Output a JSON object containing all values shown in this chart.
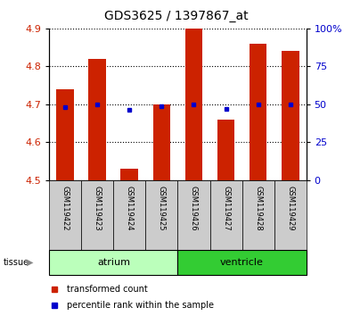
{
  "title": "GDS3625 / 1397867_at",
  "samples": [
    "GSM119422",
    "GSM119423",
    "GSM119424",
    "GSM119425",
    "GSM119426",
    "GSM119427",
    "GSM119428",
    "GSM119429"
  ],
  "transformed_count": [
    4.74,
    4.82,
    4.53,
    4.7,
    4.9,
    4.66,
    4.86,
    4.84
  ],
  "percentile_rank": [
    4.692,
    4.7,
    4.685,
    4.695,
    4.7,
    4.687,
    4.7,
    4.7
  ],
  "bar_bottom": 4.5,
  "ylim": [
    4.5,
    4.9
  ],
  "yticks_left": [
    4.5,
    4.6,
    4.7,
    4.8,
    4.9
  ],
  "yticks_right": [
    0,
    25,
    50,
    75,
    100
  ],
  "yticks_right_pos": [
    4.5,
    4.6,
    4.7,
    4.8,
    4.9
  ],
  "bar_color": "#cc2200",
  "dot_color": "#0000cc",
  "grid_color": "#000000",
  "tissue_groups": [
    {
      "label": "atrium",
      "indices": [
        0,
        1,
        2,
        3
      ],
      "color": "#bbffbb"
    },
    {
      "label": "ventricle",
      "indices": [
        4,
        5,
        6,
        7
      ],
      "color": "#33cc33"
    }
  ],
  "legend_bar_label": "transformed count",
  "legend_dot_label": "percentile rank within the sample",
  "bar_width": 0.55,
  "title_fontsize": 10,
  "axis_label_color_left": "#cc2200",
  "axis_label_color_right": "#0000cc",
  "background_color": "#ffffff",
  "tick_area_bg": "#cccccc"
}
